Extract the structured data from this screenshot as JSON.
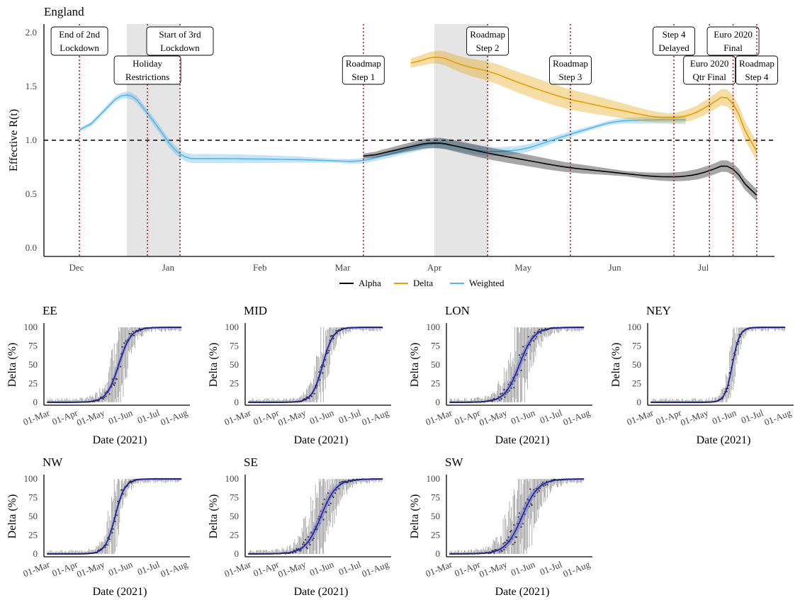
{
  "chart_data": [
    {
      "type": "line",
      "title": "England",
      "xlabel": "",
      "ylabel": "Effective R(t)",
      "ylim": [
        -0.08,
        2.08
      ],
      "x_ticks": [
        "Dec",
        "Jan",
        "Feb",
        "Mar",
        "Apr",
        "May",
        "Jun",
        "Jul"
      ],
      "x_tick_dates": [
        "2020-12-01",
        "2021-01-01",
        "2021-02-01",
        "2021-03-01",
        "2021-04-01",
        "2021-05-01",
        "2021-06-01",
        "2021-07-01"
      ],
      "x_range": [
        "2020-11-20",
        "2021-07-25"
      ],
      "y_ticks": [
        "0.0",
        "0.5",
        "1.0",
        "1.5",
        "2.0"
      ],
      "reference_line": 1.0,
      "legend": [
        "Alpha",
        "Delta",
        "Weighted"
      ],
      "legend_position": "bottom",
      "colors": {
        "Alpha": "#000000",
        "Delta": "#E69F00",
        "Weighted": "#56B4E9",
        "event_line": "#B22222",
        "shade": "#E5E5E5"
      },
      "shaded_periods": [
        [
          "2020-12-18",
          "2021-01-05"
        ],
        [
          "2021-04-01",
          "2021-04-19"
        ]
      ],
      "events": [
        {
          "date": "2020-12-02",
          "label": [
            "End of 2nd",
            "Lockdown"
          ],
          "row": 1
        },
        {
          "date": "2020-12-25",
          "label": [
            "Holiday",
            "Restrictions"
          ],
          "row": 2
        },
        {
          "date": "2021-01-05",
          "label": [
            "Start of 3rd",
            "Lockdown"
          ],
          "row": 1
        },
        {
          "date": "2021-03-08",
          "label": [
            "Roadmap",
            "Step 1"
          ],
          "row": 2
        },
        {
          "date": "2021-04-19",
          "label": [
            "Roadmap",
            "Step 2"
          ],
          "row": 1
        },
        {
          "date": "2021-05-17",
          "label": [
            "Roadmap",
            "Step 3"
          ],
          "row": 2
        },
        {
          "date": "2021-06-21",
          "label": [
            "Step 4",
            "Delayed"
          ],
          "row": 1
        },
        {
          "date": "2021-07-03",
          "label": [
            "Euro 2020",
            "Qtr Final"
          ],
          "row": 2
        },
        {
          "date": "2021-07-11",
          "label": [
            "Euro 2020",
            "Final"
          ],
          "row": 1
        },
        {
          "date": "2021-07-19",
          "label": [
            "Roadmap",
            "Step 4"
          ],
          "row": 2
        }
      ],
      "series": [
        {
          "name": "Weighted",
          "x": [
            "2020-12-02",
            "2020-12-18",
            "2020-12-25",
            "2021-01-05",
            "2021-01-20",
            "2021-02-15",
            "2021-03-07",
            "2021-04-01",
            "2021-04-19",
            "2021-05-01",
            "2021-05-15",
            "2021-06-01",
            "2021-06-15",
            "2021-06-25"
          ],
          "y": [
            1.04,
            1.49,
            1.26,
            0.83,
            0.83,
            0.82,
            0.8,
            0.98,
            0.89,
            0.91,
            1.04,
            1.18,
            1.19,
            1.19
          ],
          "band": 0.03
        },
        {
          "name": "Alpha",
          "x": [
            "2021-03-08",
            "2021-04-01",
            "2021-04-19",
            "2021-05-01",
            "2021-05-15",
            "2021-06-01",
            "2021-06-15",
            "2021-06-25",
            "2021-07-03",
            "2021-07-11",
            "2021-07-19"
          ],
          "y": [
            0.84,
            0.99,
            0.88,
            0.82,
            0.75,
            0.7,
            0.66,
            0.66,
            0.71,
            0.81,
            0.38
          ],
          "band": 0.04
        },
        {
          "name": "Delta",
          "x": [
            "2021-03-24",
            "2021-04-01",
            "2021-04-12",
            "2021-04-19",
            "2021-05-01",
            "2021-05-15",
            "2021-06-01",
            "2021-06-15",
            "2021-06-25",
            "2021-07-03",
            "2021-07-11",
            "2021-07-19"
          ],
          "y": [
            1.69,
            1.8,
            1.68,
            1.65,
            1.52,
            1.39,
            1.29,
            1.21,
            1.21,
            1.32,
            1.48,
            0.7
          ],
          "band": 0.07
        }
      ]
    },
    {
      "type": "scatter",
      "title": "EE",
      "xlabel": "Date (2021)",
      "ylabel": "Delta (%)",
      "ylim": [
        -2,
        102
      ],
      "x_ticks": [
        "01-Mar",
        "01-Apr",
        "01-May",
        "01-Jun",
        "01-Jul",
        "01-Aug"
      ],
      "y_ticks": [
        "0",
        "25",
        "50",
        "75",
        "100"
      ],
      "curve": {
        "midpoint_date": "2021-05-19",
        "days_10_to_90": 30
      },
      "data_range": [
        "2021-03-01",
        "2021-07-27"
      ]
    },
    {
      "type": "scatter",
      "title": "MID",
      "xlabel": "Date (2021)",
      "ylabel": "Delta (%)",
      "ylim": [
        -2,
        102
      ],
      "x_ticks": [
        "01-Mar",
        "01-Apr",
        "01-May",
        "01-Jun",
        "01-Jul",
        "01-Aug"
      ],
      "y_ticks": [
        "0",
        "25",
        "50",
        "75",
        "100"
      ],
      "curve": {
        "midpoint_date": "2021-05-22",
        "days_10_to_90": 26
      },
      "data_range": [
        "2021-03-01",
        "2021-07-27"
      ]
    },
    {
      "type": "scatter",
      "title": "LON",
      "xlabel": "Date (2021)",
      "ylabel": "Delta (%)",
      "ylim": [
        -2,
        102
      ],
      "x_ticks": [
        "01-Mar",
        "01-Apr",
        "01-May",
        "01-Jun",
        "01-Jul",
        "01-Aug"
      ],
      "y_ticks": [
        "0",
        "25",
        "50",
        "75",
        "100"
      ],
      "curve": {
        "midpoint_date": "2021-05-17",
        "days_10_to_90": 36
      },
      "data_range": [
        "2021-03-01",
        "2021-07-27"
      ]
    },
    {
      "type": "scatter",
      "title": "NEY",
      "xlabel": "Date (2021)",
      "ylabel": "Delta (%)",
      "ylim": [
        -2,
        102
      ],
      "x_ticks": [
        "01-Mar",
        "01-Apr",
        "01-May",
        "01-Jun",
        "01-Jul",
        "01-Aug"
      ],
      "y_ticks": [
        "0",
        "25",
        "50",
        "75",
        "100"
      ],
      "curve": {
        "midpoint_date": "2021-05-30",
        "days_10_to_90": 18
      },
      "data_range": [
        "2021-03-01",
        "2021-07-27"
      ]
    },
    {
      "type": "scatter",
      "title": "NW",
      "xlabel": "Date (2021)",
      "ylabel": "Delta (%)",
      "ylim": [
        -2,
        102
      ],
      "x_ticks": [
        "01-Mar",
        "01-Apr",
        "01-May",
        "01-Jun",
        "01-Jul",
        "01-Aug"
      ],
      "y_ticks": [
        "0",
        "25",
        "50",
        "75",
        "100"
      ],
      "curve": {
        "midpoint_date": "2021-05-15",
        "days_10_to_90": 24
      },
      "data_range": [
        "2021-03-01",
        "2021-07-27"
      ]
    },
    {
      "type": "scatter",
      "title": "SE",
      "xlabel": "Date (2021)",
      "ylabel": "Delta (%)",
      "ylim": [
        -2,
        102
      ],
      "x_ticks": [
        "01-Mar",
        "01-Apr",
        "01-May",
        "01-Jun",
        "01-Jul",
        "01-Aug"
      ],
      "y_ticks": [
        "0",
        "25",
        "50",
        "75",
        "100"
      ],
      "curve": {
        "midpoint_date": "2021-05-20",
        "days_10_to_90": 38
      },
      "data_range": [
        "2021-03-01",
        "2021-07-27"
      ]
    },
    {
      "type": "scatter",
      "title": "SW",
      "xlabel": "Date (2021)",
      "ylabel": "Delta (%)",
      "ylim": [
        -2,
        102
      ],
      "x_ticks": [
        "01-Mar",
        "01-Apr",
        "01-May",
        "01-Jun",
        "01-Jul",
        "01-Aug"
      ],
      "y_ticks": [
        "0",
        "25",
        "50",
        "75",
        "100"
      ],
      "curve": {
        "midpoint_date": "2021-05-20",
        "days_10_to_90": 40
      },
      "data_range": [
        "2021-03-01",
        "2021-07-27"
      ]
    }
  ]
}
